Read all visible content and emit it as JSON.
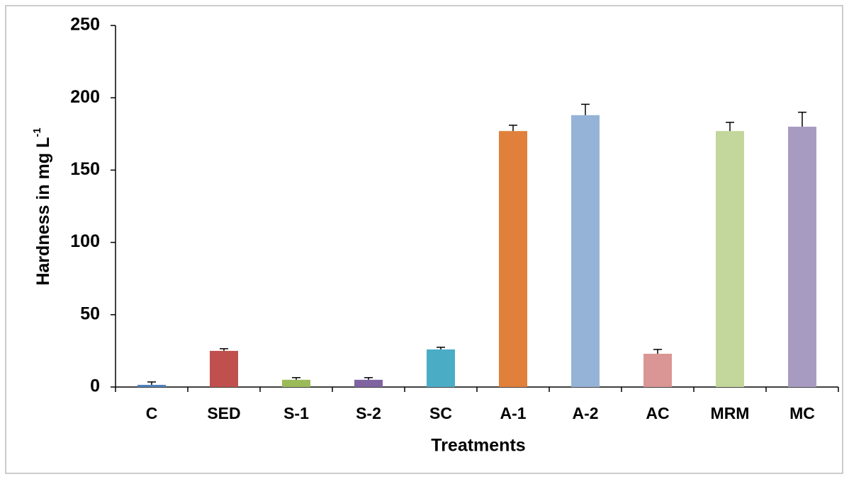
{
  "chart_data": {
    "type": "bar",
    "xlabel": "Treatments",
    "ylabel": "Hardness in mg L",
    "ylabel_superscript": "-1",
    "categories": [
      "C",
      "SED",
      "S-1",
      "S-2",
      "SC",
      "A-1",
      "A-2",
      "AC",
      "MRM",
      "MC"
    ],
    "values": [
      1.5,
      25,
      5,
      5,
      26,
      177,
      188,
      23,
      177,
      180
    ],
    "errors": [
      2,
      1.5,
      1.5,
      1.5,
      1.5,
      4,
      7.5,
      3,
      6,
      10
    ],
    "colors": [
      "#4f81bd",
      "#c0504d",
      "#9bbb59",
      "#8064a2",
      "#4bacc6",
      "#e0803a",
      "#95b3d7",
      "#d99694",
      "#c3d69b",
      "#a89bc2"
    ],
    "ylim": [
      0,
      250
    ],
    "yticks": [
      0,
      50,
      100,
      150,
      200,
      250
    ],
    "grid": false
  }
}
